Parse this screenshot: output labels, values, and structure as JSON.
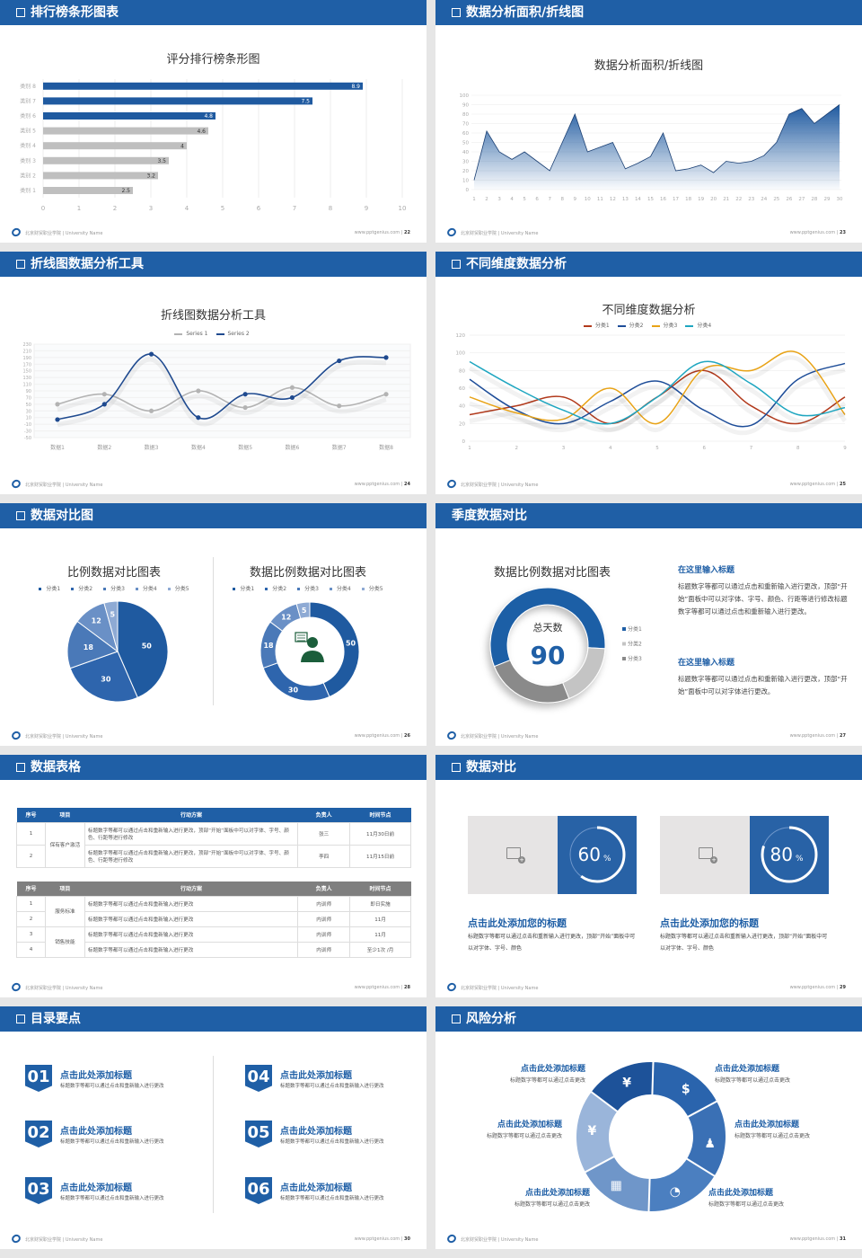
{
  "colors": {
    "header": "#1f5fa6",
    "primary": "#1f5aa0",
    "gray_bar": "#bfbfbf"
  },
  "footer": {
    "school": "北京财贸职业学院 | University Name",
    "site": "www.pptgenius.com"
  },
  "slides": [
    {
      "header": "排行榜条形图表",
      "page": "22"
    },
    {
      "header": "数据分析面积/折线图",
      "page": "23"
    },
    {
      "header": "折线图数据分析工具",
      "page": "24"
    },
    {
      "header": "不同维度数据分析",
      "page": "25"
    },
    {
      "header": "数据对比图",
      "page": "26"
    },
    {
      "header": "季度数据对比",
      "page": "27"
    },
    {
      "header": "数据表格",
      "page": "28"
    },
    {
      "header": "数据对比",
      "page": "29"
    },
    {
      "header": "目录要点",
      "page": "30"
    },
    {
      "header": "风险分析",
      "page": "31"
    }
  ],
  "chart_data": [
    {
      "type": "bar",
      "orientation": "horizontal",
      "title": "评分排行榜条形图",
      "categories": [
        "类别 1",
        "类别 2",
        "类别 3",
        "类别 4",
        "类别 5",
        "类别 6",
        "类别 7",
        "类别 8"
      ],
      "values": [
        2.5,
        3.2,
        3.5,
        4,
        4.6,
        4.8,
        7.5,
        8.9
      ],
      "highlight_top": 3,
      "xlim": [
        0,
        10
      ],
      "xticks": [
        "0",
        "1",
        "2",
        "3",
        "4",
        "5",
        "6",
        "7",
        "8",
        "9",
        "10"
      ],
      "grid": true
    },
    {
      "type": "area",
      "title": "数据分析面积/折线图",
      "x": [
        1,
        2,
        3,
        4,
        5,
        6,
        7,
        8,
        9,
        10,
        11,
        12,
        13,
        14,
        15,
        16,
        17,
        18,
        19,
        20,
        21,
        22,
        23,
        24,
        25,
        26,
        27,
        28,
        29,
        30
      ],
      "values": [
        10,
        62,
        40,
        32,
        40,
        30,
        20,
        50,
        80,
        40,
        45,
        50,
        22,
        28,
        35,
        60,
        20,
        22,
        26,
        18,
        30,
        28,
        30,
        36,
        50,
        80,
        86,
        70,
        80,
        90
      ],
      "ylim": [
        0,
        100
      ],
      "yticks": [
        "0",
        "10",
        "20",
        "30",
        "40",
        "50",
        "60",
        "70",
        "80",
        "90",
        "100"
      ]
    },
    {
      "type": "line",
      "smooth": true,
      "title": "折线图数据分析工具",
      "categories": [
        "数据1",
        "数据2",
        "数据3",
        "数据4",
        "数据5",
        "数据6",
        "数据7",
        "数据8"
      ],
      "series": [
        {
          "name": "Series 1",
          "color": "#b3b3b3",
          "values": [
            50,
            80,
            30,
            90,
            40,
            100,
            45,
            80
          ]
        },
        {
          "name": "Series 2",
          "color": "#1f4a8f",
          "values": [
            4,
            50,
            200,
            10,
            80,
            70,
            180,
            190
          ]
        }
      ],
      "ylim": [
        -50,
        230
      ],
      "yticks": [
        "-50",
        "-30",
        "-10",
        "10",
        "30",
        "50",
        "70",
        "90",
        "110",
        "130",
        "150",
        "170",
        "190",
        "210",
        "230"
      ],
      "legend": "top"
    },
    {
      "type": "line",
      "smooth": true,
      "title": "不同维度数据分析",
      "x": [
        "1",
        "2",
        "3",
        "4",
        "5",
        "6",
        "7",
        "8",
        "9"
      ],
      "series": [
        {
          "name": "分类1",
          "color": "#b23a1c",
          "values": [
            30,
            40,
            50,
            20,
            50,
            80,
            40,
            20,
            50
          ]
        },
        {
          "name": "分类2",
          "color": "#1f4e99",
          "values": [
            70,
            35,
            20,
            45,
            68,
            35,
            18,
            70,
            88
          ]
        },
        {
          "name": "分类3",
          "color": "#e8a317",
          "values": [
            50,
            32,
            25,
            60,
            20,
            82,
            80,
            100,
            30
          ]
        },
        {
          "name": "分类4",
          "color": "#1fa6c0",
          "values": [
            90,
            60,
            35,
            20,
            50,
            90,
            65,
            30,
            38
          ]
        }
      ],
      "ylim": [
        0,
        120
      ],
      "yticks": [
        "0",
        "20",
        "40",
        "60",
        "80",
        "100",
        "120"
      ],
      "legend": "top"
    },
    {
      "type": "pie",
      "title": "比例数据对比图表",
      "categories": [
        "分类1",
        "分类2",
        "分类3",
        "分类4",
        "分类5"
      ],
      "values": [
        50,
        30,
        18,
        12,
        5
      ],
      "colors": [
        "#1f5aa0",
        "#2e65ad",
        "#4a79b8",
        "#6a90c6",
        "#8eaad4"
      ],
      "legend": "top"
    },
    {
      "type": "pie",
      "donut": true,
      "title": "数据比例数据对比图表",
      "categories": [
        "分类1",
        "分类2",
        "分类3",
        "分类4",
        "分类5"
      ],
      "values": [
        50,
        30,
        18,
        12,
        5
      ],
      "colors": [
        "#1f5aa0",
        "#2e65ad",
        "#4a79b8",
        "#6a90c6",
        "#8eaad4"
      ],
      "center_icon": "customer-service-icon",
      "legend": "top"
    },
    {
      "type": "pie",
      "donut": true,
      "title": "数据比例数据对比图表",
      "categories": [
        "分类1",
        "分类2",
        "分类3"
      ],
      "values": [
        57,
        18,
        25
      ],
      "colors": [
        "#1f5fa6",
        "#c4c4c4",
        "#8a8a8a"
      ],
      "center_label": "总天数",
      "center_value": "90",
      "legend": "right"
    }
  ],
  "quarter": {
    "blocks": [
      {
        "title": "在这里输入标题",
        "text": "标题数字等都可以通过点击和重新输入进行更改，顶部“开始”面板中可以对字体、字号、颜色、行距等进行修改标题数字等都可以通过点击和重新输入进行更改。"
      },
      {
        "title": "在这里输入标题",
        "text": "标题数字等都可以通过点击和重新输入进行更改，顶部“开始”面板中可以对字体进行更改。"
      }
    ]
  },
  "tables": [
    {
      "color": "#1f5fa6",
      "headers": [
        "序号",
        "项目",
        "行动方案",
        "负责人",
        "时间节点"
      ],
      "rows": [
        [
          "1",
          "保有客户激活",
          "标题数字等都可以通过点击和重新输入进行更改，顶部“开始”面板中可以对字体、字号、颜色、行距等进行修改",
          "张三",
          "11月30日前"
        ],
        [
          "2",
          "",
          "标题数字等都可以通过点击和重新输入进行更改，顶部“开始”面板中可以对字体、字号、颜色、行距等进行修改",
          "李四",
          "11月15日前"
        ]
      ],
      "groups": [
        2
      ]
    },
    {
      "color": "#7f7f7f",
      "headers": [
        "序号",
        "项目",
        "行动方案",
        "负责人",
        "时间节点"
      ],
      "rows": [
        [
          "1",
          "服务标准",
          "标题数字等都可以通过点击和重新输入进行更改",
          "内训师",
          "即日实施"
        ],
        [
          "2",
          "",
          "标题数字等都可以通过点击和重新输入进行更改",
          "内训师",
          "11月"
        ],
        [
          "3",
          "销售技能",
          "标题数字等都可以通过点击和重新输入进行更改",
          "内训师",
          "11月"
        ],
        [
          "4",
          "",
          "标题数字等都可以通过点击和重新输入进行更改",
          "内训师",
          "至少1次 /月"
        ]
      ],
      "groups": [
        2,
        2
      ]
    }
  ],
  "compare": {
    "cards": [
      {
        "percent": 60,
        "value": "60",
        "unit": "%",
        "image_icon": "image-add-icon",
        "title": "点击此处添加您的标题",
        "text": "标题数字等都可以通过点击和重新输入进行更改，顶部“开始”面板中可以对字体、字号、颜色"
      },
      {
        "percent": 80,
        "value": "80",
        "unit": "%",
        "image_icon": "image-add-icon",
        "title": "点击此处添加您的标题",
        "text": "标题数字等都可以通过点击和重新输入进行更改，顶部“开始”面板中可以对字体、字号、颜色"
      }
    ]
  },
  "toc": {
    "items": [
      {
        "num": "01",
        "title": "点击此处添加标题",
        "text": "标题数字等都可以通过点击和重新输入进行更改"
      },
      {
        "num": "02",
        "title": "点击此处添加标题",
        "text": "标题数字等都可以通过点击和重新输入进行更改"
      },
      {
        "num": "03",
        "title": "点击此处添加标题",
        "text": "标题数字等都可以通过点击和重新输入进行更改"
      },
      {
        "num": "04",
        "title": "点击此处添加标题",
        "text": "标题数字等都可以通过点击和重新输入进行更改"
      },
      {
        "num": "05",
        "title": "点击此处添加标题",
        "text": "标题数字等都可以通过点击和重新输入进行更改"
      },
      {
        "num": "06",
        "title": "点击此处添加标题",
        "text": "标题数字等都可以通过点击和重新输入进行更改"
      }
    ]
  },
  "risk": {
    "items": [
      {
        "title": "点击此处添加标题",
        "text": "标题数字等都可以通过点击更改",
        "icon": "money-bag-icon",
        "glyph": "¥"
      },
      {
        "title": "点击此处添加标题",
        "text": "标题数字等都可以通过点击更改",
        "icon": "coins-document-icon",
        "glyph": "$"
      },
      {
        "title": "点击此处添加标题",
        "text": "标题数字等都可以通过点击更改",
        "icon": "users-icon",
        "glyph": "♟"
      },
      {
        "title": "点击此处添加标题",
        "text": "标题数字等都可以通过点击更改",
        "icon": "pie-chart-icon",
        "glyph": "◔"
      },
      {
        "title": "点击此处添加标题",
        "text": "标题数字等都可以通过点击更改",
        "icon": "building-icon",
        "glyph": "▦"
      },
      {
        "title": "点击此处添加标题",
        "text": "标题数字等都可以通过点击更改",
        "icon": "yen-hand-icon",
        "glyph": "¥"
      }
    ]
  }
}
